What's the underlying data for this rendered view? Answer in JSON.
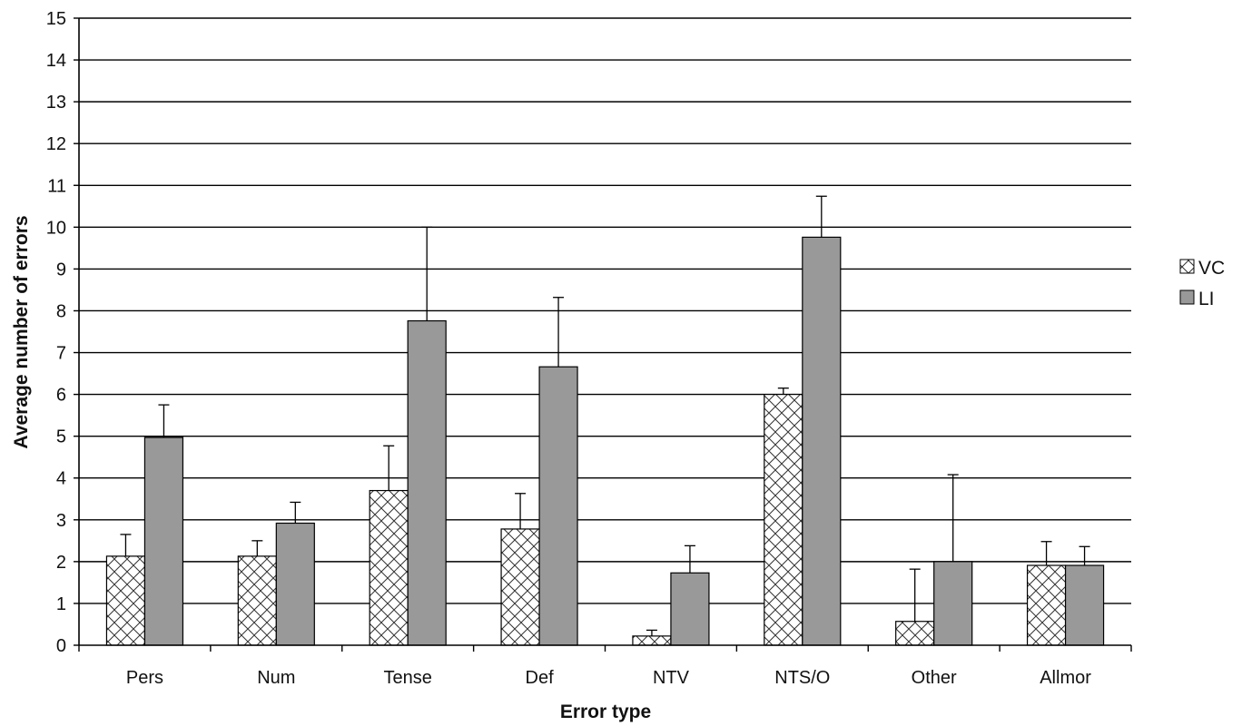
{
  "chart_data": {
    "type": "bar",
    "title": "",
    "xlabel": "Error type",
    "ylabel": "Average number of errors",
    "ylim": [
      0,
      15
    ],
    "yticks": [
      0,
      1,
      2,
      3,
      4,
      5,
      6,
      7,
      8,
      9,
      10,
      11,
      12,
      13,
      14,
      15
    ],
    "grid": true,
    "legend_position": "right",
    "categories": [
      "Pers",
      "Num",
      "Tense",
      "Def",
      "NTV",
      "NTS/O",
      "Other",
      "Allmor"
    ],
    "series": [
      {
        "name": "VC",
        "pattern": "crosshatch",
        "color": "#ffffff",
        "values": [
          2.13,
          2.13,
          3.7,
          2.78,
          0.22,
          6.0,
          0.57,
          1.91
        ],
        "error_upper": [
          0.52,
          0.37,
          1.07,
          0.85,
          0.14,
          0.15,
          1.25,
          0.57
        ]
      },
      {
        "name": "LI",
        "pattern": "solid",
        "color": "#999999",
        "values": [
          4.97,
          2.92,
          7.76,
          6.66,
          1.73,
          9.76,
          2.0,
          1.91
        ],
        "error_upper": [
          0.78,
          0.5,
          2.24,
          1.66,
          0.65,
          0.98,
          2.08,
          0.45
        ]
      }
    ]
  }
}
